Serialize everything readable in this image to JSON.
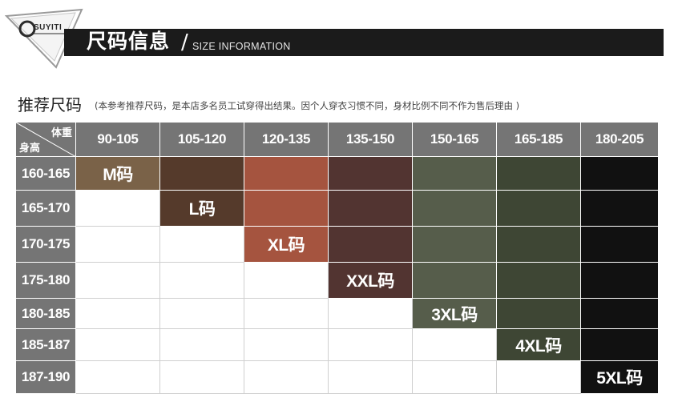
{
  "brand": {
    "logo_text": "SUYITI"
  },
  "header": {
    "title": "尺码信息",
    "slash": "/",
    "subtitle": "SIZE INFORMATION"
  },
  "section": {
    "title": "推荐尺码",
    "note": "(本参考推荐尺码，是本店多名员工试穿得出结果。因个人穿衣习惯不同，身材比例不同不作为售后理由 )"
  },
  "table": {
    "corner_top": "体重",
    "corner_bottom": "身高",
    "weights": [
      "90-105",
      "105-120",
      "120-135",
      "135-150",
      "150-165",
      "165-185",
      "180-205"
    ],
    "heights": [
      "160-165",
      "165-170",
      "170-175",
      "175-180",
      "180-185",
      "185-187",
      "187-190"
    ],
    "sizes": [
      "M码",
      "L码",
      "XL码",
      "XXL码",
      "3XL码",
      "4XL码",
      "5XL码"
    ],
    "column_colors": [
      "#7a6248",
      "#553a2b",
      "#a5543f",
      "#523431",
      "#565d4b",
      "#3e4634",
      "#111111"
    ]
  }
}
